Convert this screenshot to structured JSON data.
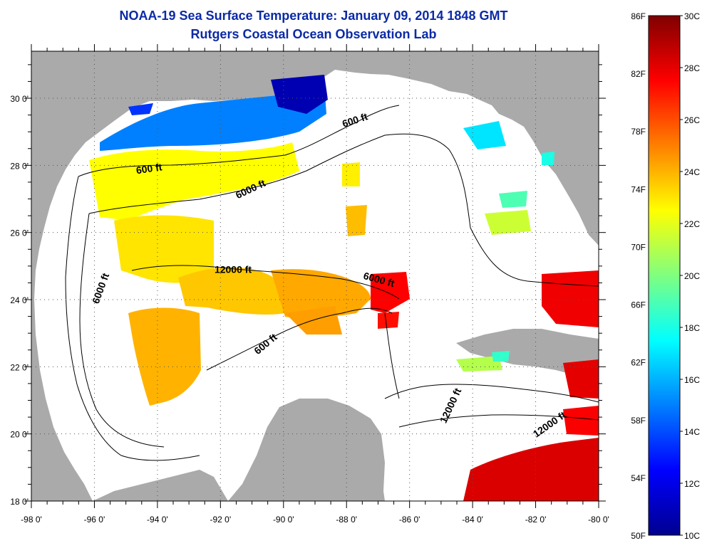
{
  "header": {
    "title": "NOAA-19 Sea Surface Temperature:  January 09, 2014 1848 GMT",
    "subtitle": "Rutgers Coastal Ocean Observation Lab"
  },
  "map": {
    "x_axis": {
      "ticks": [
        -98,
        -96,
        -94,
        -92,
        -90,
        -88,
        -86,
        -84,
        -82,
        -80
      ],
      "labels": [
        "-98 0'",
        "-96 0'",
        "-94 0'",
        "-92 0'",
        "-90 0'",
        "-88 0'",
        "-86 0'",
        "-84 0'",
        "-82 0'",
        "-80 0'"
      ],
      "range": [
        -98,
        -80
      ]
    },
    "y_axis": {
      "ticks": [
        18,
        20,
        22,
        24,
        26,
        28,
        30
      ],
      "labels": [
        "18 0'",
        "20 0'",
        "22 0'",
        "24 0'",
        "26 0'",
        "28 0'",
        "30 0'"
      ],
      "range": [
        18,
        31.4
      ]
    },
    "contour_labels": [
      {
        "text": "600 ft",
        "lon": -94.25,
        "lat": 27.8,
        "angle": -8
      },
      {
        "text": "600 ft",
        "lon": -87.7,
        "lat": 29.25,
        "angle": -18
      },
      {
        "text": "6000 ft",
        "lon": -91.0,
        "lat": 27.2,
        "angle": -25
      },
      {
        "text": "12000 ft",
        "lon": -91.6,
        "lat": 24.8,
        "angle": 0
      },
      {
        "text": "6000 ft",
        "lon": -87.0,
        "lat": 24.5,
        "angle": 15
      },
      {
        "text": "6000 ft",
        "lon": -95.7,
        "lat": 24.3,
        "angle": -70
      },
      {
        "text": "600 ft",
        "lon": -90.5,
        "lat": 22.6,
        "angle": -40
      },
      {
        "text": "12000 ft",
        "lon": -84.6,
        "lat": 20.8,
        "angle": -65
      },
      {
        "text": "12000 ft",
        "lon": -81.5,
        "lat": 20.2,
        "angle": -35
      }
    ]
  },
  "colorbar": {
    "min_c": 10,
    "max_c": 30,
    "f_labels": [
      "86F",
      "82F",
      "78F",
      "74F",
      "70F",
      "66F",
      "62F",
      "58F",
      "54F",
      "50F"
    ],
    "f_values": [
      86,
      82,
      78,
      74,
      70,
      66,
      62,
      58,
      54,
      50
    ],
    "c_labels": [
      "30C",
      "28C",
      "26C",
      "24C",
      "22C",
      "20C",
      "18C",
      "16C",
      "14C",
      "12C",
      "10C"
    ],
    "c_values": [
      30,
      28,
      26,
      24,
      22,
      20,
      18,
      16,
      14,
      12,
      10
    ]
  },
  "colors": {
    "land": "#aaaaaa",
    "water": "#ffffff",
    "grid": "#555555",
    "contour": "#000000",
    "title": "#0b2aa6"
  }
}
